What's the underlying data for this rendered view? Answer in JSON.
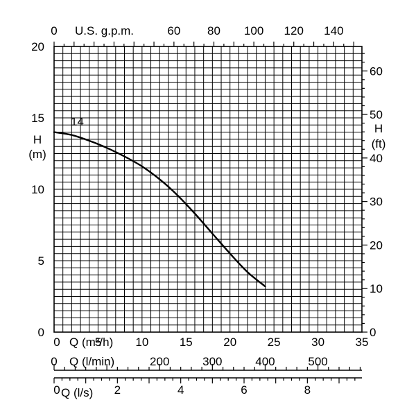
{
  "chart_data": {
    "type": "line",
    "x_axis": {
      "label": "Q (m³/h)",
      "min": 0,
      "max": 35,
      "ticks": [
        0,
        5,
        10,
        15,
        20,
        25,
        30,
        35
      ],
      "tick_labels": [
        "0",
        "5",
        "10",
        "15",
        "20",
        "25",
        "30",
        "35"
      ]
    },
    "y_axis": {
      "label": "H (m)",
      "label_lines": [
        "H",
        "(m)"
      ],
      "min": 0,
      "max": 20,
      "ticks": [
        0,
        5,
        10,
        15,
        20
      ],
      "tick_labels": [
        "0",
        "5",
        "10",
        "15",
        "20"
      ]
    },
    "top_axis": {
      "label": "U.S. g.p.m.",
      "ticks": [
        0,
        60,
        80,
        100,
        120,
        140
      ],
      "tick_labels": [
        "0",
        "60",
        "80",
        "100",
        "120",
        "140"
      ],
      "m3h_per_unit": 0.22712
    },
    "right_axis": {
      "label_lines": [
        "H",
        "(ft)"
      ],
      "ticks": [
        0,
        10,
        20,
        30,
        40,
        50,
        60
      ],
      "tick_labels": [
        "0",
        "10",
        "20",
        "30",
        "40",
        "50",
        "60"
      ],
      "m_per_unit": 0.3048
    },
    "lmin_axis": {
      "label": "Q (l/min)",
      "ticks": [
        0,
        200,
        300,
        400,
        500
      ],
      "tick_labels": [
        "0",
        "200",
        "300",
        "400",
        "500"
      ],
      "m3h_per_unit": 0.06
    },
    "ls_axis": {
      "label": "Q (l/s)",
      "ticks": [
        0,
        2,
        4,
        6,
        8
      ],
      "tick_labels": [
        "0",
        "2",
        "4",
        "6",
        "8"
      ],
      "m3h_per_unit": 3.6
    },
    "grid": true,
    "series": [
      {
        "name": "14",
        "x": [
          0,
          2,
          4,
          6,
          8,
          10,
          12,
          14,
          16,
          18,
          20,
          22,
          24
        ],
        "y": [
          14.0,
          13.8,
          13.4,
          12.9,
          12.3,
          11.6,
          10.7,
          9.6,
          8.3,
          6.9,
          5.5,
          4.2,
          3.2
        ]
      }
    ]
  }
}
